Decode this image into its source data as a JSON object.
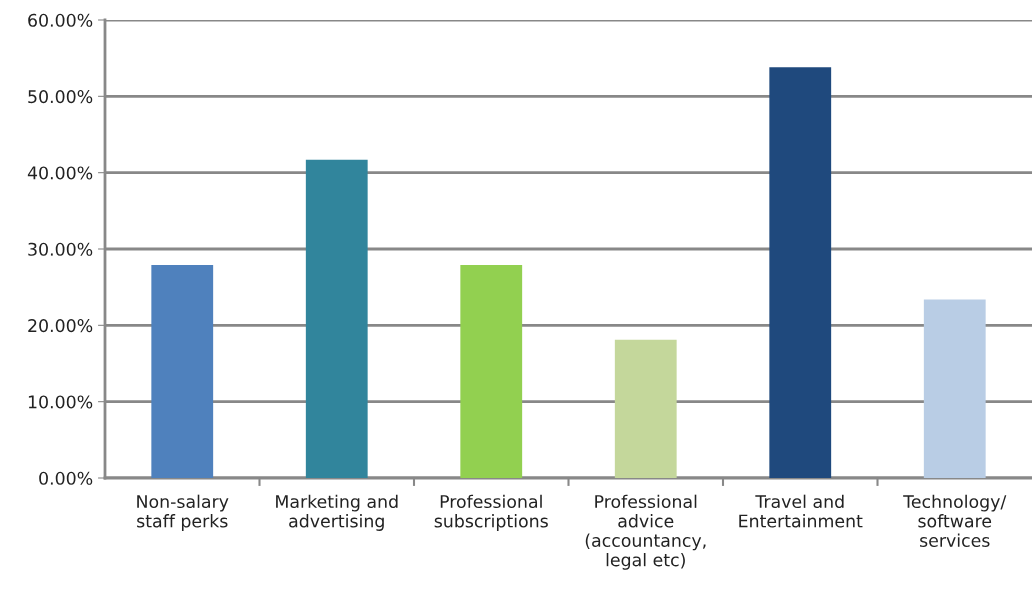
{
  "chart_data": {
    "type": "bar",
    "categories": [
      "Non-salary\nstaff perks",
      "Marketing and\nadvertising",
      "Professional\nsubscriptions",
      "Professional\nadvice\n(accountancy,\nlegal etc)",
      "Travel and\nEntertainment",
      "Technology/\nsoftware\nservices"
    ],
    "values": [
      27.9,
      41.7,
      27.9,
      18.1,
      53.8,
      23.4
    ],
    "colors": [
      "#4f81bd",
      "#31859c",
      "#92d050",
      "#c4d79b",
      "#1f497d",
      "#b9cde5"
    ],
    "ylim": [
      0,
      60
    ],
    "yticks": [
      {
        "value": 0,
        "label": "0.00%"
      },
      {
        "value": 10,
        "label": "10.00%"
      },
      {
        "value": 20,
        "label": "20.00%"
      },
      {
        "value": 30,
        "label": "30.00%"
      },
      {
        "value": 40,
        "label": "40.00%"
      },
      {
        "value": 50,
        "label": "50.00%"
      },
      {
        "value": 60,
        "label": "60.00%"
      }
    ],
    "grid": "y"
  }
}
